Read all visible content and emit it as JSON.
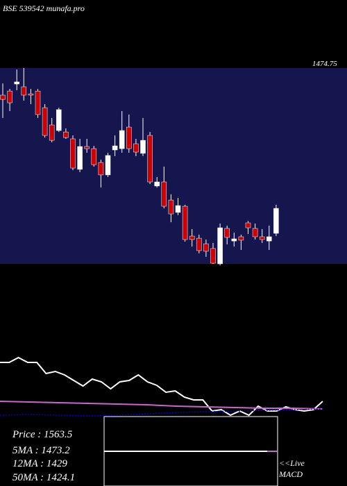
{
  "header": {
    "title": "BSE 539542 munafa.pro",
    "price_label": "1474.75"
  },
  "chart_data": [
    {
      "type": "candlestick",
      "ylim": [
        1250,
        2450
      ],
      "up_color": "#ffffff",
      "down_color": "#cc0000",
      "background": "#16164f",
      "open": [
        2284,
        2309,
        2352,
        2335,
        2292,
        2309,
        2207,
        2101,
        2067,
        2058,
        2016,
        1829,
        1969,
        1956,
        1871,
        1795,
        1948,
        1956,
        2088,
        1986,
        1927,
        2037,
        1727,
        1752,
        1641,
        1565,
        1603,
        1420,
        1407,
        1373,
        1344,
        1250,
        1467,
        1390,
        1416,
        1501,
        1467,
        1416,
        1390,
        1437
      ],
      "high": [
        2356,
        2322,
        2441,
        2450,
        2322,
        2322,
        2229,
        2144,
        2207,
        2080,
        2037,
        2016,
        2016,
        1973,
        1888,
        1931,
        2037,
        2186,
        2165,
        2016,
        2144,
        2058,
        1782,
        1846,
        1676,
        1654,
        1612,
        1463,
        1429,
        1399,
        1378,
        1497,
        1484,
        1441,
        1429,
        1514,
        1497,
        1463,
        1484,
        1612
      ],
      "low": [
        2144,
        2186,
        2314,
        2250,
        2229,
        2144,
        2024,
        1995,
        2058,
        2016,
        1824,
        1812,
        1931,
        1846,
        1718,
        1782,
        1910,
        1931,
        1931,
        1910,
        1910,
        1739,
        1718,
        1590,
        1505,
        1548,
        1386,
        1356,
        1314,
        1293,
        1250,
        1241,
        1369,
        1356,
        1335,
        1433,
        1399,
        1378,
        1335,
        1420
      ],
      "close": [
        2258,
        2237,
        2365,
        2284,
        2284,
        2165,
        2037,
        2007,
        2195,
        2024,
        1837,
        1969,
        1956,
        1858,
        1795,
        1914,
        1973,
        2067,
        1956,
        1935,
        2007,
        1752,
        1752,
        1603,
        1556,
        1607,
        1399,
        1399,
        1331,
        1327,
        1254,
        1471,
        1412,
        1403,
        1395,
        1471,
        1416,
        1399,
        1416,
        1590
      ]
    },
    {
      "type": "line",
      "ylim": [
        0,
        100
      ],
      "series": [
        {
          "color": "#ffffff",
          "style": "solid",
          "values": [
            78,
            78,
            85,
            78,
            78,
            62,
            65,
            60,
            52,
            44,
            54,
            50,
            40,
            50,
            52,
            60,
            50,
            45,
            35,
            37,
            28,
            24,
            24,
            8,
            10,
            2,
            8,
            2,
            15,
            8,
            8,
            14,
            10,
            8,
            10,
            22
          ]
        },
        {
          "color": "#cc66cc",
          "style": "solid",
          "values": [
            22,
            21,
            20,
            19,
            18,
            17,
            15,
            14,
            13,
            12,
            12,
            11
          ]
        },
        {
          "color": "#0000dd",
          "style": "dotted",
          "values": [
            2,
            3,
            2,
            1,
            2,
            4,
            6,
            7,
            8,
            9,
            10,
            11
          ]
        }
      ]
    }
  ],
  "info": [
    "Price   : 1563.5",
    "5MA : 1473.2",
    "12MA : 1429",
    "50MA : 1424.1"
  ],
  "macd": {
    "live": "<<Live",
    "label": "MACD"
  }
}
